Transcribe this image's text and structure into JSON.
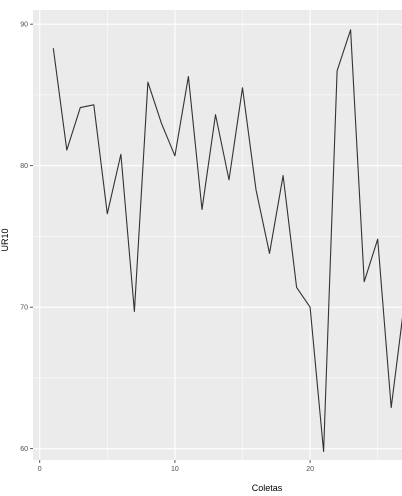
{
  "chart_data": {
    "type": "line",
    "xlabel": "Coletas",
    "ylabel": "UR10",
    "x_ticks": [
      0,
      10,
      20
    ],
    "y_ticks": [
      60,
      70,
      80,
      90
    ],
    "xlim": [
      -0.5,
      26.8
    ],
    "ylim": [
      59.2,
      91.0
    ],
    "grid": true,
    "series": [
      {
        "x": [
          1,
          2,
          3,
          4,
          5,
          6,
          7,
          8,
          9,
          10,
          11,
          12,
          13,
          14,
          15,
          16,
          17,
          18,
          19,
          20,
          21,
          22,
          23,
          24,
          25,
          26,
          27
        ],
        "values": [
          88.3,
          81.1,
          84.1,
          84.3,
          76.6,
          80.8,
          69.7,
          85.9,
          83.0,
          80.7,
          86.3,
          76.9,
          83.6,
          79.0,
          85.5,
          78.3,
          73.8,
          79.3,
          71.4,
          70.0,
          59.8,
          86.7,
          89.6,
          71.8,
          74.8,
          62.9,
          70.5
        ]
      }
    ],
    "colors": {
      "panel": "#ebebeb",
      "grid": "#ffffff",
      "line": "#333333"
    }
  }
}
